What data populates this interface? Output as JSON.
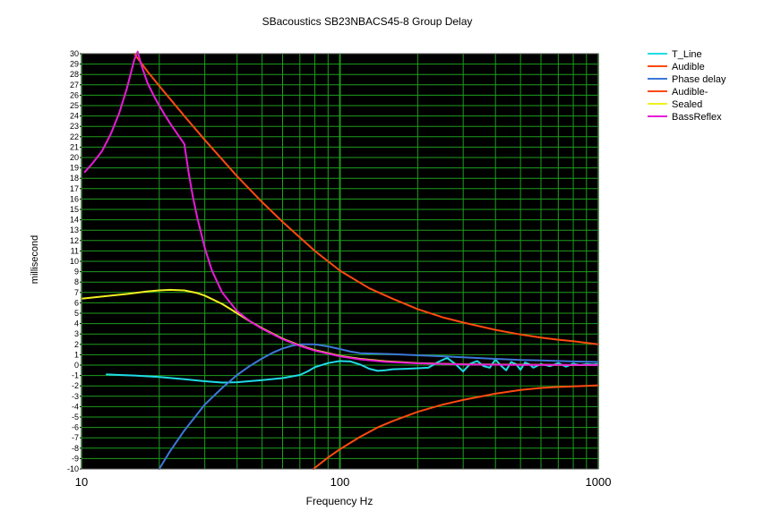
{
  "chart_data": {
    "type": "line",
    "title": "SBacoustics SB23NBACS45-8 Group Delay",
    "xlabel": "Frequency Hz",
    "ylabel": "millisecond",
    "x_scale": "log",
    "xlim": [
      10,
      1000
    ],
    "ylim": [
      -10,
      30
    ],
    "grid": true,
    "legend_position": "right",
    "x_ticks": [
      {
        "value": 10,
        "label": "10"
      },
      {
        "value": 100,
        "label": "100"
      },
      {
        "value": 1000,
        "label": "1000"
      }
    ],
    "y_ticks": [
      30,
      29,
      28,
      27,
      26,
      25,
      24,
      23,
      22,
      21,
      20,
      19,
      18,
      17,
      16,
      15,
      14,
      13,
      12,
      11,
      10,
      9,
      8,
      7,
      6,
      5,
      4,
      3,
      2,
      1,
      0,
      -1,
      -2,
      -3,
      -4,
      -5,
      -6,
      -7,
      -8,
      -9,
      -10
    ],
    "series": [
      {
        "name": "T_Line",
        "color": "#1fdce6",
        "x": [
          12.5,
          16,
          20,
          25,
          30,
          35,
          40,
          50,
          60,
          70,
          75,
          80,
          90,
          100,
          110,
          120,
          130,
          140,
          150,
          160,
          180,
          200,
          220,
          240,
          260,
          280,
          300,
          320,
          340,
          360,
          380,
          400,
          420,
          440,
          460,
          480,
          500,
          520,
          540,
          560,
          600,
          650,
          700,
          750,
          800,
          850,
          900,
          950,
          1000
        ],
        "y": [
          -0.9,
          -1.0,
          -1.15,
          -1.35,
          -1.55,
          -1.68,
          -1.65,
          -1.45,
          -1.25,
          -0.95,
          -0.6,
          -0.2,
          0.2,
          0.4,
          0.35,
          0.05,
          -0.35,
          -0.55,
          -0.5,
          -0.4,
          -0.35,
          -0.3,
          -0.25,
          0.3,
          0.7,
          0.1,
          -0.6,
          0.15,
          0.4,
          -0.1,
          -0.25,
          0.55,
          -0.05,
          -0.5,
          0.3,
          0.1,
          -0.45,
          0.25,
          0.1,
          -0.25,
          0.1,
          -0.1,
          0.2,
          -0.15,
          0.15,
          0.0,
          0.1,
          0.05,
          0.1
        ]
      },
      {
        "name": "Audible",
        "color": "#ff4a10",
        "x": [
          16,
          18,
          20,
          25,
          30,
          40,
          50,
          60,
          80,
          100,
          130,
          160,
          200,
          250,
          300,
          400,
          500,
          600,
          700,
          800,
          1000
        ],
        "y": [
          30,
          28.3,
          26.9,
          24.0,
          21.7,
          18.2,
          15.7,
          13.8,
          11.0,
          9.1,
          7.4,
          6.4,
          5.4,
          4.6,
          4.1,
          3.4,
          2.95,
          2.65,
          2.45,
          2.3,
          2.0
        ]
      },
      {
        "name": "Phase delay",
        "color": "#3c78d8",
        "x": [
          20,
          22,
          25,
          30,
          35,
          40,
          45,
          50,
          55,
          60,
          65,
          70,
          80,
          90,
          100,
          110,
          120,
          140,
          160,
          200,
          250,
          300,
          400,
          500,
          600,
          700,
          800,
          1000
        ],
        "y": [
          -10,
          -8.3,
          -6.3,
          -3.8,
          -2.2,
          -0.95,
          -0.05,
          0.65,
          1.2,
          1.6,
          1.85,
          2.0,
          2.0,
          1.8,
          1.55,
          1.3,
          1.15,
          1.1,
          1.05,
          0.95,
          0.85,
          0.75,
          0.6,
          0.5,
          0.45,
          0.4,
          0.35,
          0.3
        ]
      },
      {
        "name": "Audible-",
        "color": "#ff4a10",
        "x": [
          79,
          90,
          100,
          120,
          140,
          160,
          200,
          250,
          300,
          400,
          500,
          600,
          700,
          800,
          1000
        ],
        "y": [
          -10,
          -8.9,
          -8.1,
          -6.9,
          -6.0,
          -5.4,
          -4.5,
          -3.8,
          -3.35,
          -2.75,
          -2.4,
          -2.2,
          -2.1,
          -2.05,
          -1.95
        ]
      },
      {
        "name": "Sealed",
        "color": "#f0f020",
        "x": [
          10,
          12,
          15,
          18,
          20,
          22,
          25,
          28,
          30,
          35,
          40,
          45,
          50,
          60,
          70,
          80,
          100,
          120,
          150,
          200,
          300,
          500,
          700,
          1000
        ],
        "y": [
          6.4,
          6.6,
          6.85,
          7.1,
          7.2,
          7.25,
          7.2,
          6.95,
          6.7,
          5.9,
          5.0,
          4.2,
          3.55,
          2.55,
          1.9,
          1.45,
          0.9,
          0.6,
          0.38,
          0.2,
          0.08,
          0.04,
          0.02,
          0.01
        ]
      },
      {
        "name": "BassReflex",
        "color": "#e81ad8",
        "x": [
          10.3,
          11,
          12,
          13,
          14,
          15,
          16,
          16.5,
          17,
          18,
          19,
          20,
          21,
          22,
          23,
          25,
          26,
          27,
          28,
          30,
          32,
          35,
          40,
          45,
          50,
          60,
          70,
          80,
          100,
          120,
          150,
          200,
          300,
          500,
          700,
          1000
        ],
        "y": [
          18.6,
          19.4,
          20.6,
          22.3,
          24.3,
          26.7,
          29.4,
          30.2,
          29.0,
          27.2,
          26.0,
          25.0,
          24.1,
          23.3,
          22.6,
          21.3,
          18.5,
          16.2,
          14.3,
          11.3,
          9.1,
          7.0,
          5.2,
          4.2,
          3.5,
          2.5,
          1.85,
          1.4,
          0.85,
          0.55,
          0.33,
          0.17,
          0.07,
          0.03,
          0.02,
          0.01
        ]
      }
    ]
  }
}
